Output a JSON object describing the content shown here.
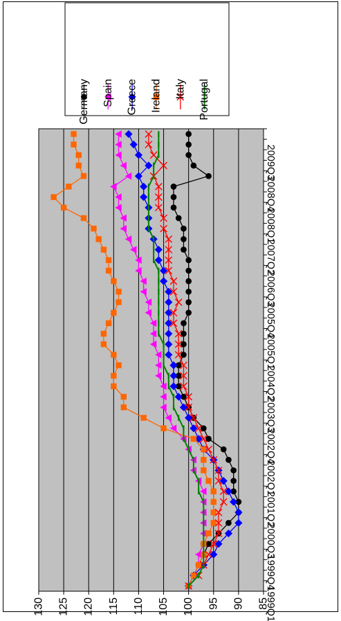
{
  "chart_data": {
    "type": "line",
    "orientation": "rotated-90-clockwise",
    "title": "",
    "xlabel": "",
    "ylabel": "",
    "ylim": [
      85,
      130
    ],
    "yticks": [
      85,
      90,
      95,
      100,
      105,
      110,
      115,
      120,
      125,
      130
    ],
    "x_tick_labels": [
      "1999Q1",
      "1999Q4",
      "2000Q3",
      "2001Q2",
      "2002Q1",
      "2002Q4",
      "2003Q3",
      "2004Q2",
      "2005Q1",
      "2005Q4",
      "2006Q3",
      "2007Q2",
      "2008Q1",
      "2008Q4",
      "2009Q3"
    ],
    "x": [
      "1999Q1",
      "1999Q2",
      "1999Q3",
      "1999Q4",
      "2000Q1",
      "2000Q2",
      "2000Q3",
      "2000Q4",
      "2001Q1",
      "2001Q2",
      "2001Q3",
      "2001Q4",
      "2002Q1",
      "2002Q2",
      "2002Q3",
      "2002Q4",
      "2003Q1",
      "2003Q2",
      "2003Q3",
      "2003Q4",
      "2004Q1",
      "2004Q2",
      "2004Q3",
      "2004Q4",
      "2005Q1",
      "2005Q2",
      "2005Q3",
      "2005Q4",
      "2006Q1",
      "2006Q2",
      "2006Q3",
      "2006Q4",
      "2007Q1",
      "2007Q2",
      "2007Q3",
      "2007Q4",
      "2008Q1",
      "2008Q2",
      "2008Q3",
      "2008Q4",
      "2009Q1",
      "2009Q2",
      "2009Q3",
      "2009Q4"
    ],
    "grid": true,
    "legend_position": "top-right",
    "colors": {
      "plot_bg": "#c0c0c0",
      "grid": "#000000"
    },
    "series": [
      {
        "name": "Germany",
        "color": "#000000",
        "marker": "circle",
        "values": [
          100,
          99,
          98,
          97,
          96,
          94,
          92,
          90,
          90,
          91,
          91,
          91,
          92,
          93,
          96,
          97,
          99,
          100,
          101,
          102,
          102,
          102,
          101,
          101,
          101,
          101,
          100,
          100,
          100,
          100,
          100,
          100,
          101,
          101,
          101,
          102,
          103,
          103,
          103,
          96,
          99,
          100,
          100,
          100
        ]
      },
      {
        "name": "Spain",
        "color": "#ff00ff",
        "marker": "triangle",
        "values": [
          100,
          99,
          98,
          98,
          97,
          97,
          97,
          97,
          97,
          97,
          98,
          99,
          99,
          100,
          101,
          103,
          104,
          105,
          105,
          105,
          106,
          106,
          106,
          107,
          107,
          107,
          108,
          108,
          109,
          109,
          110,
          110,
          111,
          112,
          113,
          113,
          114,
          114,
          115,
          112,
          113,
          114,
          114,
          114
        ]
      },
      {
        "name": "Greece",
        "color": "#0000ff",
        "marker": "diamond",
        "values": [
          100,
          99,
          97,
          95,
          94,
          92,
          90,
          90,
          91,
          92,
          93,
          94,
          95,
          97,
          98,
          99,
          100,
          101,
          102,
          103,
          103,
          103,
          104,
          104,
          104,
          104,
          104,
          104,
          104,
          105,
          105,
          106,
          106,
          107,
          108,
          108,
          108,
          109,
          109,
          110,
          108,
          110,
          111,
          112
        ]
      },
      {
        "name": "Ireland",
        "color": "#ff6600",
        "marker": "square",
        "values": [
          100,
          99,
          98,
          97,
          97,
          96,
          95,
          95,
          95,
          95,
          96,
          97,
          97,
          97,
          99,
          105,
          109,
          113,
          113,
          115,
          115,
          114,
          115,
          117,
          117,
          116,
          115,
          114,
          114,
          115,
          116,
          116,
          117,
          118,
          119,
          121,
          125,
          127,
          124,
          121,
          122,
          122,
          123,
          123
        ]
      },
      {
        "name": "Italy",
        "color": "#ff0000",
        "marker": "x",
        "values": [
          100,
          98,
          97,
          96,
          95,
          94,
          94,
          94,
          93,
          93,
          94,
          94,
          95,
          96,
          97,
          98,
          99,
          100,
          100,
          101,
          101,
          101,
          102,
          102,
          102,
          103,
          103,
          102,
          103,
          103,
          104,
          104,
          104,
          104,
          105,
          105,
          106,
          106,
          106,
          107,
          105,
          107,
          108,
          108
        ]
      },
      {
        "name": "Portugal",
        "color": "#008000",
        "marker": "dash",
        "values": [
          100,
          98,
          97,
          97,
          97,
          97,
          97,
          97,
          97,
          98,
          98,
          99,
          99,
          100,
          101,
          101,
          102,
          103,
          103,
          104,
          104,
          105,
          105,
          105,
          106,
          106,
          106,
          106,
          106,
          106,
          106,
          107,
          107,
          107,
          108,
          108,
          108,
          108,
          108,
          107,
          107,
          106,
          106,
          106
        ]
      }
    ]
  }
}
